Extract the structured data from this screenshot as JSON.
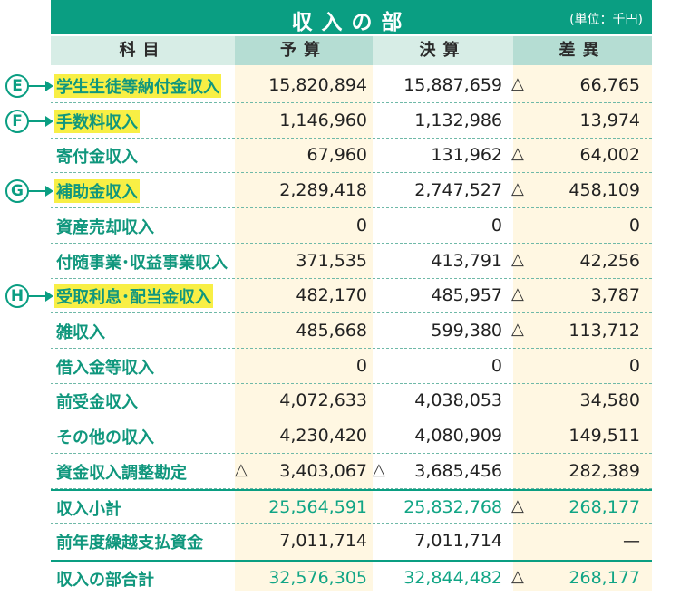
{
  "title": "収入の部",
  "unit": "(単位：千円)",
  "headers": {
    "kamoku": "科目",
    "yosan": "予算",
    "kessan": "決算",
    "sai": "差異"
  },
  "rows": [
    {
      "marker": "E",
      "label": "学生生徒等納付金収入",
      "highlight": true,
      "yosan": "15,820,894",
      "kessan": "15,887,659",
      "kessan_tri": "△",
      "sai": "66,765"
    },
    {
      "marker": "F",
      "label": "手数料収入",
      "highlight": true,
      "yosan": "1,146,960",
      "kessan": "1,132,986",
      "sai": "13,974"
    },
    {
      "label": "寄付金収入",
      "yosan": "67,960",
      "kessan": "131,962",
      "kessan_tri": "△",
      "sai": "64,002"
    },
    {
      "marker": "G",
      "label": "補助金収入",
      "highlight": true,
      "yosan": "2,289,418",
      "kessan": "2,747,527",
      "kessan_tri": "△",
      "sai": "458,109"
    },
    {
      "label": "資産売却収入",
      "yosan": "0",
      "kessan": "0",
      "sai": "0"
    },
    {
      "label": "付随事業･収益事業収入",
      "yosan": "371,535",
      "kessan": "413,791",
      "kessan_tri": "△",
      "sai": "42,256"
    },
    {
      "marker": "H",
      "label": "受取利息･配当金収入",
      "highlight": true,
      "yosan": "482,170",
      "kessan": "485,957",
      "kessan_tri": "△",
      "sai": "3,787"
    },
    {
      "label": "雑収入",
      "yosan": "485,668",
      "kessan": "599,380",
      "kessan_tri": "△",
      "sai": "113,712"
    },
    {
      "label": "借入金等収入",
      "yosan": "0",
      "kessan": "0",
      "sai": "0"
    },
    {
      "label": "前受金収入",
      "yosan": "4,072,633",
      "kessan": "4,038,053",
      "sai": "34,580"
    },
    {
      "label": "その他の収入",
      "yosan": "4,230,420",
      "kessan": "4,080,909",
      "sai": "149,511"
    },
    {
      "label": "資金収入調整勘定",
      "yosan_tri": "△",
      "yosan": "3,403,067",
      "kessan_tri2": "△",
      "kessan": "3,685,456",
      "sai": "282,389"
    }
  ],
  "subtotal": {
    "label": "収入小計",
    "yosan": "25,564,591",
    "kessan": "25,832,768",
    "kessan_tri": "△",
    "sai": "268,177"
  },
  "carryover": {
    "label": "前年度繰越支払資金",
    "yosan": "7,011,714",
    "kessan": "7,011,714",
    "sai": "—"
  },
  "total": {
    "label": "収入の部合計",
    "yosan": "32,576,305",
    "kessan": "32,844,482",
    "kessan_tri": "△",
    "sai": "268,177"
  },
  "colors": {
    "accent": "#0a9e82",
    "highlight": "#f8ef45",
    "header_light": "#d7ede6",
    "header_dark": "#b5ddd3",
    "cream": "#fff7e2"
  }
}
